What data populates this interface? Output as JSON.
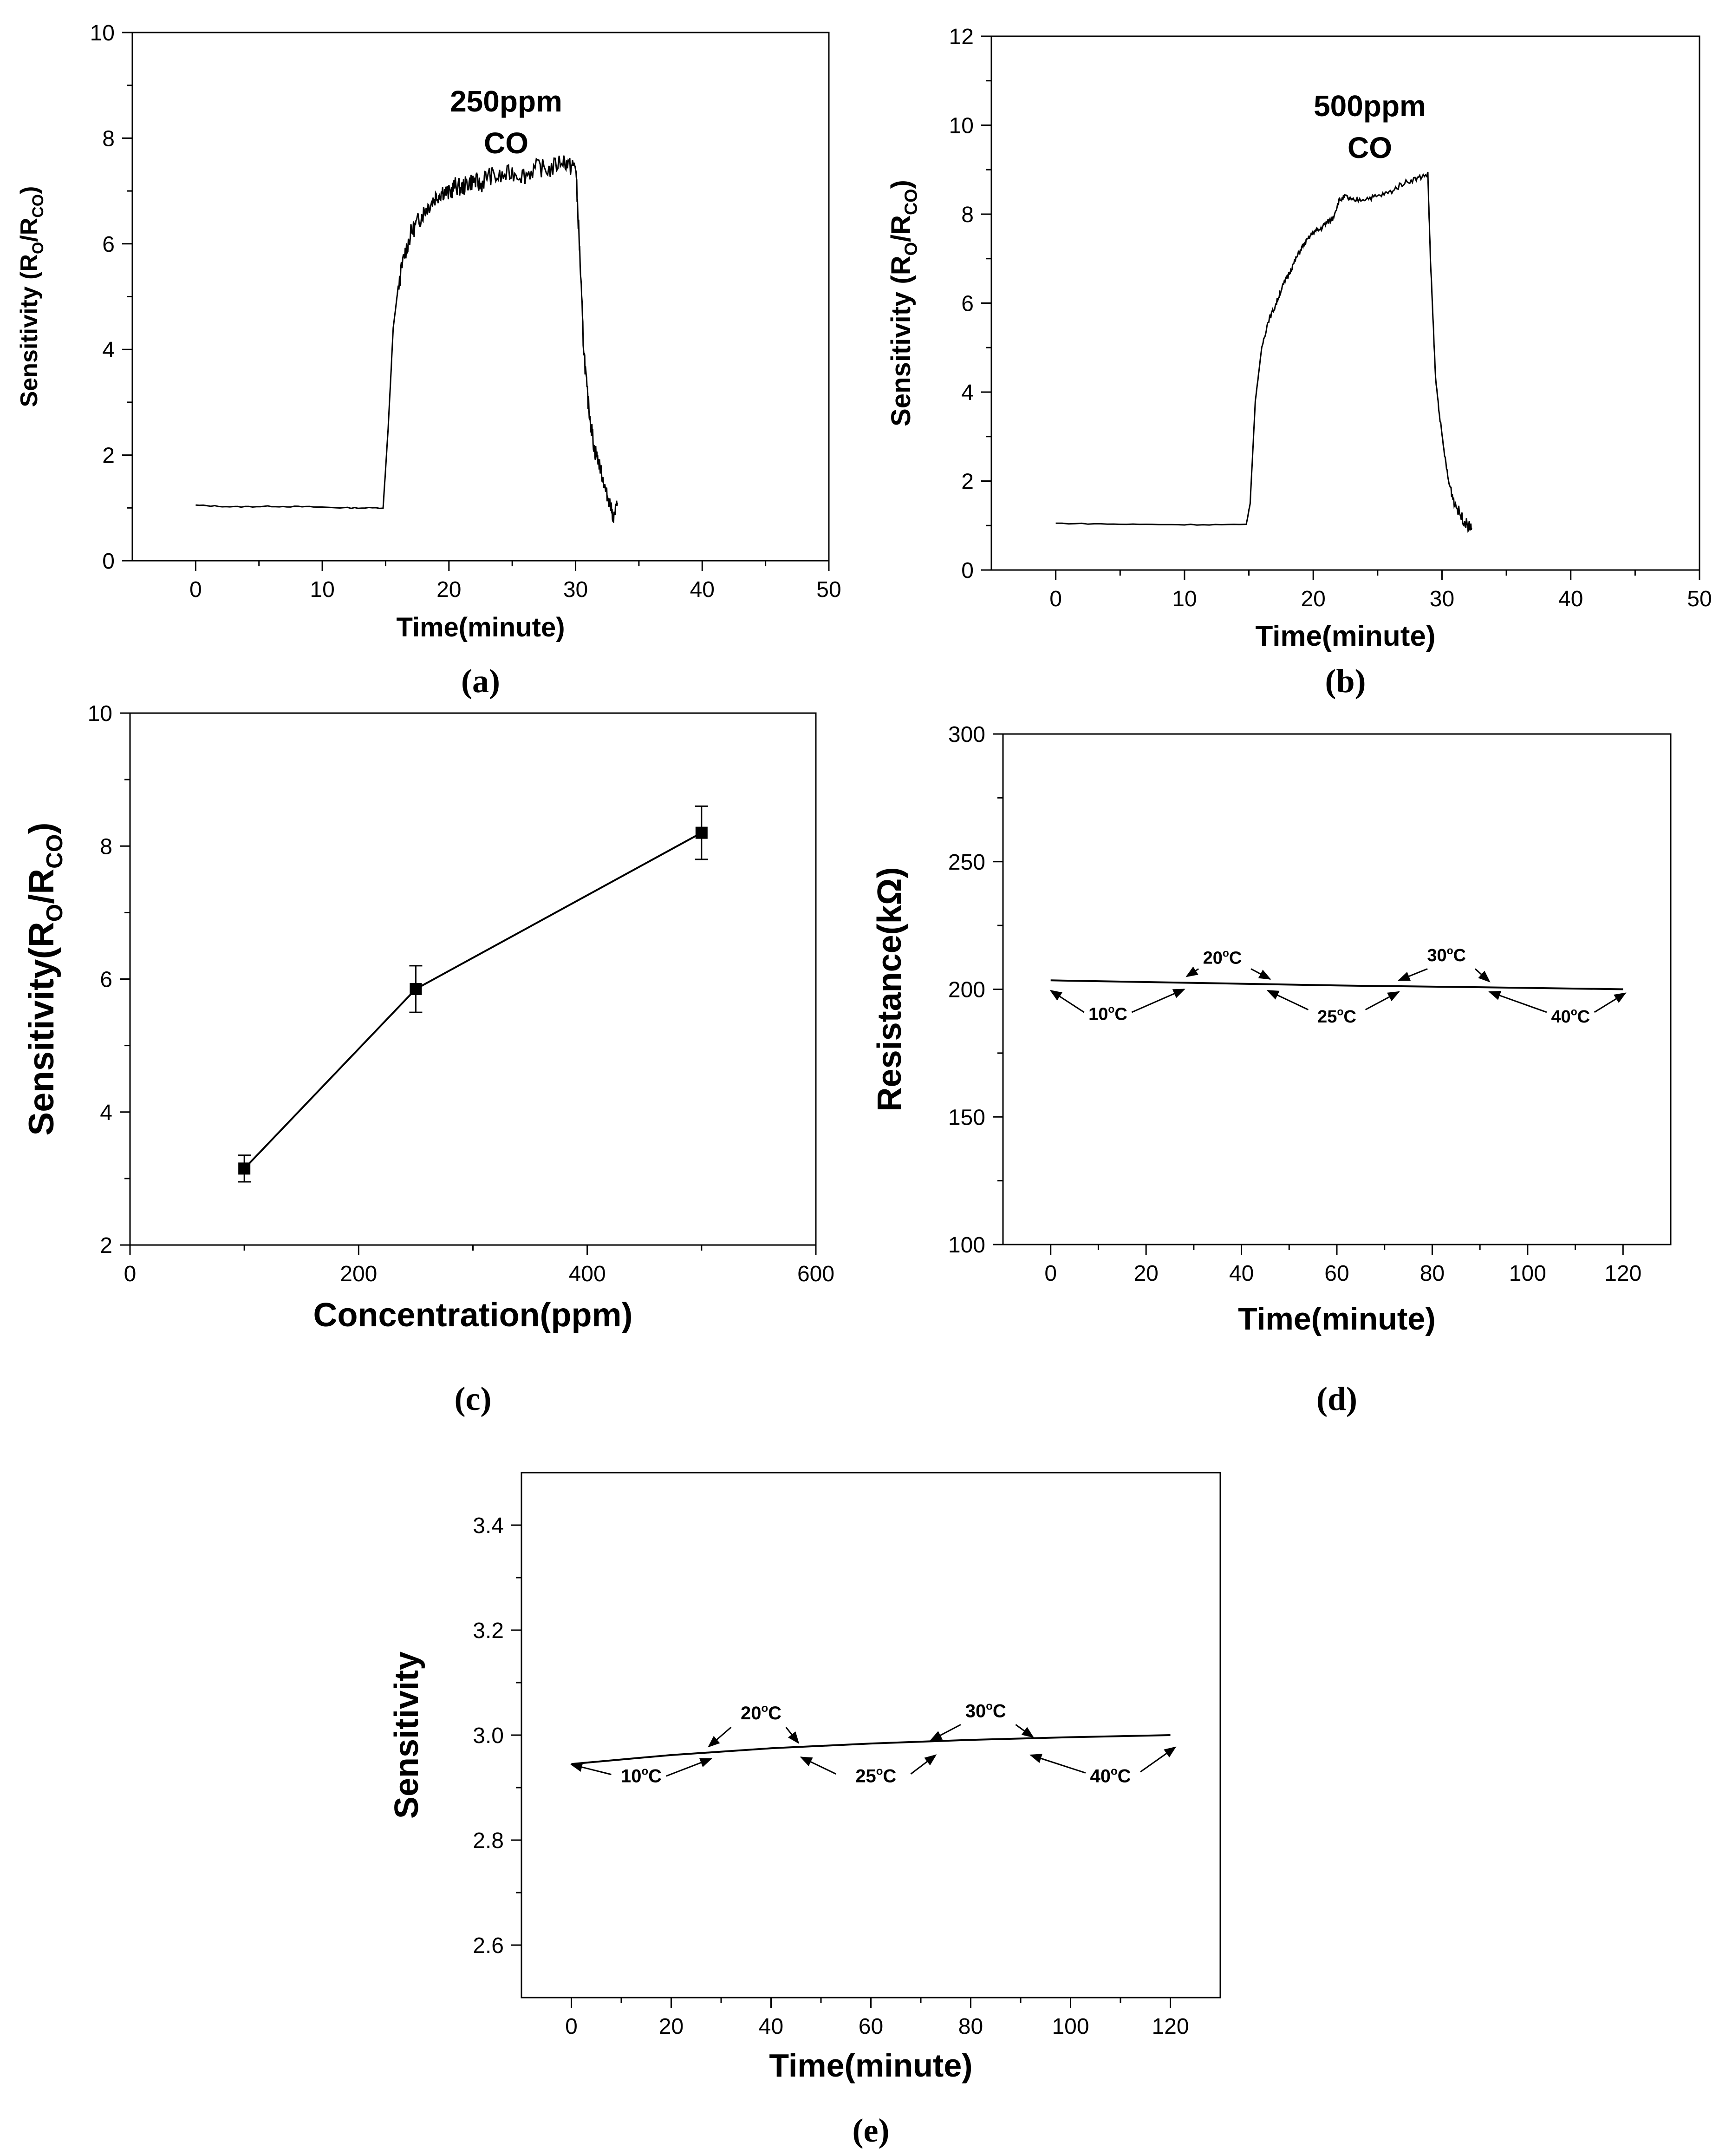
{
  "chart_data": [
    {
      "id": "a",
      "type": "line",
      "caption": "(a)",
      "xlabel": "Time(minute)",
      "ylabel": {
        "base": "Sensitivity (R",
        "sub1": "O",
        "mid": "/R",
        "sub2": "CO",
        "end": ")"
      },
      "xlim": [
        -5,
        50
      ],
      "ylim": [
        0,
        10
      ],
      "xticks": [
        0,
        10,
        20,
        30,
        40,
        50
      ],
      "yticks": [
        0,
        2,
        4,
        6,
        8,
        10
      ],
      "annotation": [
        "250ppm",
        "CO"
      ],
      "series": [
        {
          "name": "250ppm CO",
          "x": [
            0,
            3,
            6,
            9,
            12,
            14.8,
            15.2,
            15.6,
            16,
            16.5,
            17,
            17.5,
            18,
            18.5,
            19,
            19.5,
            20,
            20.5,
            21,
            21.5,
            22,
            22.5,
            23,
            24,
            25,
            26,
            27,
            28,
            29,
            29.6,
            30,
            30.3,
            30.6,
            30.9,
            31.2,
            31.5,
            31.8,
            32.1,
            32.4,
            32.7,
            33,
            33.3
          ],
          "y": [
            1.05,
            1.02,
            1.03,
            1.02,
            1.0,
            1.0,
            2.5,
            4.4,
            5.2,
            5.8,
            6.2,
            6.4,
            6.6,
            6.75,
            6.9,
            7.0,
            6.95,
            7.1,
            7.05,
            7.15,
            7.2,
            7.1,
            7.3,
            7.25,
            7.35,
            7.3,
            7.45,
            7.4,
            7.6,
            7.45,
            7.5,
            6.0,
            4.2,
            3.2,
            2.6,
            2.1,
            1.9,
            1.6,
            1.3,
            1.1,
            0.8,
            1.1
          ]
        }
      ]
    },
    {
      "id": "b",
      "type": "line",
      "caption": "(b)",
      "xlabel": "Time(minute)",
      "ylabel": {
        "base": "Sensitivity (R",
        "sub1": "O",
        "mid": "/R",
        "sub2": "CO",
        "end": ")"
      },
      "xlim": [
        -5,
        50
      ],
      "ylim": [
        0,
        12
      ],
      "xticks": [
        0,
        10,
        20,
        30,
        40,
        50
      ],
      "yticks": [
        0,
        2,
        4,
        6,
        8,
        10,
        12
      ],
      "annotation": [
        "500ppm",
        "CO"
      ],
      "series": [
        {
          "name": "500ppm CO",
          "x": [
            0,
            5,
            10,
            14.8,
            15.1,
            15.5,
            16,
            16.5,
            17,
            17.5,
            18,
            18.5,
            19,
            19.5,
            20,
            20.5,
            21,
            21.5,
            22,
            22.5,
            23,
            24,
            25,
            26,
            27,
            28,
            28.9,
            29.1,
            29.5,
            30,
            30.5,
            31,
            31.5,
            32,
            32.3
          ],
          "y": [
            1.05,
            1.03,
            1.02,
            1.02,
            1.5,
            3.8,
            5.0,
            5.6,
            5.9,
            6.3,
            6.6,
            6.9,
            7.2,
            7.4,
            7.6,
            7.65,
            7.8,
            7.9,
            8.3,
            8.4,
            8.3,
            8.35,
            8.4,
            8.5,
            8.7,
            8.8,
            8.9,
            7.0,
            4.3,
            3.0,
            2.0,
            1.5,
            1.2,
            1.0,
            0.95
          ]
        }
      ]
    },
    {
      "id": "c",
      "type": "line",
      "caption": "(c)",
      "xlabel": "Concentration(ppm)",
      "ylabel": {
        "base": "Sensitivity(R",
        "sub1": "O",
        "mid": "/R",
        "sub2": "CO",
        "end": ")"
      },
      "xlim": [
        0,
        600
      ],
      "ylim": [
        2,
        10
      ],
      "xticks": [
        0,
        200,
        400,
        600
      ],
      "yticks": [
        2,
        4,
        6,
        8,
        10
      ],
      "series": [
        {
          "name": "Sensitivity",
          "x": [
            100,
            250,
            500
          ],
          "y": [
            3.15,
            5.85,
            8.2
          ],
          "err": [
            0.2,
            0.35,
            0.4
          ]
        }
      ]
    },
    {
      "id": "d",
      "type": "line",
      "caption": "(d)",
      "xlabel": "Time(minute)",
      "ylabel": {
        "base": "Resistance(kΩ)"
      },
      "xlim": [
        -10,
        130
      ],
      "ylim": [
        100,
        300
      ],
      "xticks": [
        0,
        20,
        40,
        60,
        80,
        100,
        120
      ],
      "yticks": [
        100,
        150,
        200,
        250,
        300
      ],
      "series": [
        {
          "name": "Resistance",
          "x": [
            0,
            30,
            60,
            90,
            120
          ],
          "y": [
            203.5,
            202.5,
            201.5,
            200.8,
            200.0
          ]
        }
      ],
      "temp_labels": [
        {
          "text": "10",
          "unit": "C",
          "x": 12,
          "y": 188
        },
        {
          "text": "20",
          "unit": "C",
          "x": 36,
          "y": 210
        },
        {
          "text": "25",
          "unit": "C",
          "x": 60,
          "y": 187
        },
        {
          "text": "30",
          "unit": "C",
          "x": 83,
          "y": 211
        },
        {
          "text": "40",
          "unit": "C",
          "x": 109,
          "y": 187
        }
      ],
      "arrows": [
        {
          "from": [
            7,
            191
          ],
          "to": [
            0,
            199.5
          ]
        },
        {
          "from": [
            17,
            191
          ],
          "to": [
            28,
            200
          ]
        },
        {
          "from": [
            31,
            208
          ],
          "to": [
            28.5,
            205
          ]
        },
        {
          "from": [
            42,
            208
          ],
          "to": [
            46,
            204
          ]
        },
        {
          "from": [
            54,
            192
          ],
          "to": [
            45.5,
            199.5
          ]
        },
        {
          "from": [
            66,
            192
          ],
          "to": [
            73,
            199
          ]
        },
        {
          "from": [
            79,
            208
          ],
          "to": [
            73,
            203.5
          ]
        },
        {
          "from": [
            89,
            208
          ],
          "to": [
            92,
            203
          ]
        },
        {
          "from": [
            104,
            191
          ],
          "to": [
            92,
            199
          ]
        },
        {
          "from": [
            114,
            191
          ],
          "to": [
            120.5,
            198.5
          ]
        }
      ]
    },
    {
      "id": "e",
      "type": "line",
      "caption": "(e)",
      "xlabel": "Time(minute)",
      "ylabel": {
        "base": "Sensitivity"
      },
      "xlim": [
        -10,
        130
      ],
      "ylim": [
        2.5,
        3.5
      ],
      "xticks": [
        0,
        20,
        40,
        60,
        80,
        100,
        120
      ],
      "yticks": [
        2.6,
        2.8,
        3.0,
        3.2,
        3.4
      ],
      "series": [
        {
          "name": "Sensitivity",
          "x": [
            0,
            20,
            40,
            60,
            80,
            100,
            120
          ],
          "y": [
            2.945,
            2.962,
            2.975,
            2.984,
            2.991,
            2.996,
            3.0
          ]
        }
      ],
      "temp_labels": [
        {
          "text": "10",
          "unit": "C",
          "x": 14,
          "y": 2.91
        },
        {
          "text": "20",
          "unit": "C",
          "x": 38,
          "y": 3.03
        },
        {
          "text": "25",
          "unit": "C",
          "x": 61,
          "y": 2.91
        },
        {
          "text": "30",
          "unit": "C",
          "x": 83,
          "y": 3.034
        },
        {
          "text": "40",
          "unit": "C",
          "x": 108,
          "y": 2.91
        }
      ],
      "arrows": [
        {
          "from": [
            8,
            2.925
          ],
          "to": [
            0,
            2.944
          ]
        },
        {
          "from": [
            19,
            2.922
          ],
          "to": [
            28,
            2.955
          ]
        },
        {
          "from": [
            32,
            3.015
          ],
          "to": [
            27.5,
            2.978
          ]
        },
        {
          "from": [
            43,
            3.015
          ],
          "to": [
            45.5,
            2.985
          ]
        },
        {
          "from": [
            53,
            2.926
          ],
          "to": [
            46,
            2.958
          ]
        },
        {
          "from": [
            68,
            2.926
          ],
          "to": [
            73,
            2.962
          ]
        },
        {
          "from": [
            78,
            3.02
          ],
          "to": [
            72,
            2.99
          ]
        },
        {
          "from": [
            89,
            3.02
          ],
          "to": [
            92.5,
            2.996
          ]
        },
        {
          "from": [
            103,
            2.928
          ],
          "to": [
            92,
            2.962
          ]
        },
        {
          "from": [
            114,
            2.93
          ],
          "to": [
            121,
            2.977
          ]
        }
      ]
    }
  ]
}
